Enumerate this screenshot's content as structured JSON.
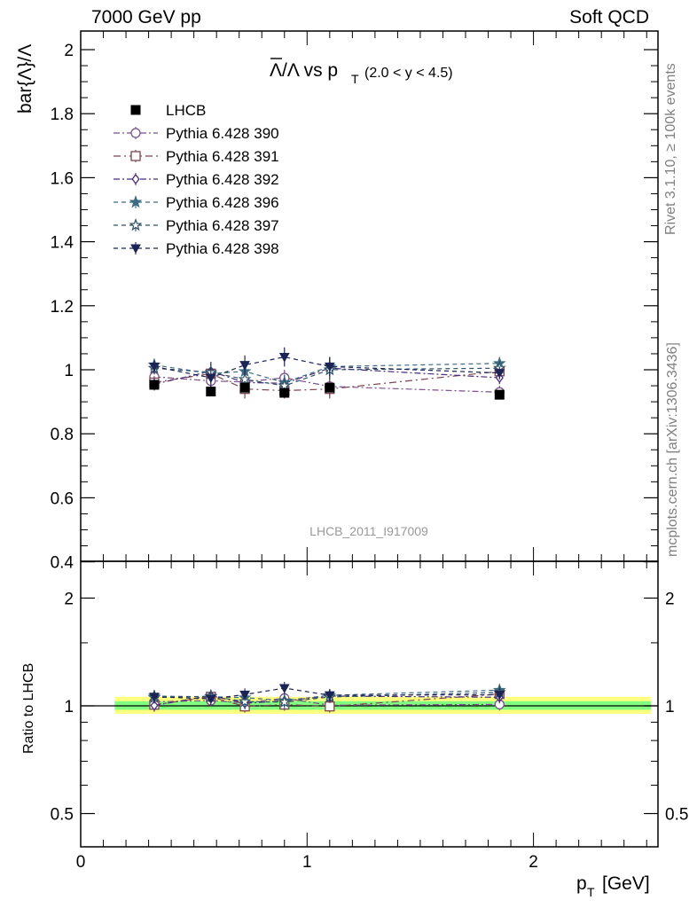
{
  "header": {
    "left": "7000 GeV pp",
    "right": "Soft QCD"
  },
  "side_text": {
    "rivet": "Rivet 3.1.10, ≥ 100k events",
    "mcplots": "mcplots.cern.ch [arXiv:1306.3436]"
  },
  "chart_data": [
    {
      "type": "scatter",
      "panel": "main",
      "title": "Λ̄/Λ vs pT (2.0 < y < 4.5)",
      "title_main": "Λ/Λ vs p",
      "title_sub": "T",
      "title_range": "(2.0 < y < 4.5)",
      "ylabel": "bar{Λ}/Λ",
      "watermark": "LHCB_2011_I917009",
      "xlim": [
        0,
        2.55
      ],
      "ylim": [
        0.4,
        2.05
      ],
      "yticks": [
        "0.4",
        "0.6",
        "0.8",
        "1",
        "1.2",
        "1.4",
        "1.6",
        "1.8",
        "2"
      ],
      "legend_position": "top-left",
      "data": {
        "name": "LHCB",
        "x": [
          0.325,
          0.575,
          0.725,
          0.9,
          1.1,
          1.85
        ],
        "y": [
          0.953,
          0.932,
          0.944,
          0.928,
          0.944,
          0.922
        ],
        "yerr": [
          0.012,
          0.009,
          0.01,
          0.01,
          0.01,
          0.01
        ]
      },
      "series": [
        {
          "name": "Pythia 6.428 390",
          "color": "#7b4f8b",
          "marker": "circle-open",
          "dash": "7,3,2,3",
          "x": [
            0.325,
            0.575,
            0.725,
            0.9,
            1.1,
            1.85
          ],
          "y": [
            0.978,
            0.965,
            0.962,
            0.975,
            0.948,
            0.93
          ],
          "yerr": [
            0.02,
            0.02,
            0.03,
            0.025,
            0.03,
            0.02
          ]
        },
        {
          "name": "Pythia 6.428 391",
          "color": "#7a4550",
          "marker": "square-open",
          "dash": "8,4,2,4",
          "x": [
            0.325,
            0.575,
            0.725,
            0.9,
            1.1,
            1.85
          ],
          "y": [
            0.96,
            0.988,
            0.94,
            0.935,
            0.94,
            0.995
          ],
          "yerr": [
            0.02,
            0.03,
            0.03,
            0.025,
            0.03,
            0.02
          ]
        },
        {
          "name": "Pythia 6.428 392",
          "color": "#4a2b7c",
          "marker": "diamond-open",
          "dash": "7,3,2,3",
          "x": [
            0.325,
            0.575,
            0.725,
            0.9,
            1.1,
            1.85
          ],
          "y": [
            0.955,
            0.995,
            0.96,
            0.958,
            1.005,
            0.975
          ],
          "yerr": [
            0.02,
            0.03,
            0.03,
            0.025,
            0.03,
            0.02
          ]
        },
        {
          "name": "Pythia 6.428 396",
          "color": "#3d6b82",
          "marker": "star-filled",
          "dash": "5,4",
          "x": [
            0.325,
            0.575,
            0.725,
            0.9,
            1.1,
            1.85
          ],
          "y": [
            1.015,
            0.988,
            0.995,
            0.96,
            1.01,
            1.02
          ],
          "yerr": [
            0.02,
            0.03,
            0.03,
            0.025,
            0.03,
            0.02
          ]
        },
        {
          "name": "Pythia 6.428 397",
          "color": "#2f5266",
          "marker": "star-open",
          "dash": "5,4",
          "x": [
            0.325,
            0.575,
            0.725,
            0.9,
            1.1,
            1.85
          ],
          "y": [
            1.005,
            0.992,
            0.97,
            0.95,
            1.0,
            1.005
          ],
          "yerr": [
            0.02,
            0.03,
            0.03,
            0.025,
            0.03,
            0.02
          ]
        },
        {
          "name": "Pythia 6.428 398",
          "color": "#1c2456",
          "marker": "triangle-down-filled",
          "dash": "5,4",
          "x": [
            0.325,
            0.575,
            0.725,
            0.9,
            1.1,
            1.85
          ],
          "y": [
            1.01,
            0.975,
            1.015,
            1.04,
            1.01,
            0.99
          ],
          "yerr": [
            0.02,
            0.03,
            0.03,
            0.03,
            0.03,
            0.02
          ]
        }
      ]
    },
    {
      "type": "scatter",
      "panel": "ratio",
      "ylabel": "Ratio to LHCB",
      "xlabel_main": "p",
      "xlabel_sub": "T",
      "xlabel_unit": "[GeV]",
      "xlim": [
        0,
        2.55
      ],
      "ylim": [
        0.37,
        2.4
      ],
      "log_y": true,
      "yticks": [
        "0.5",
        "1",
        "2"
      ],
      "xticks": [
        "0",
        "1",
        "2"
      ],
      "band_x": [
        0.15,
        2.52
      ],
      "band_yellow": [
        0.95,
        1.06
      ],
      "band_green": [
        0.975,
        1.03
      ],
      "series": [
        {
          "name": "Pythia 6.428 390",
          "color": "#7b4f8b",
          "marker": "circle-open",
          "dash": "7,3,2,3",
          "x": [
            0.325,
            0.575,
            0.725,
            0.9,
            1.1,
            1.85
          ],
          "y": [
            1.026,
            1.035,
            1.019,
            1.05,
            1.004,
            1.009
          ]
        },
        {
          "name": "Pythia 6.428 391",
          "color": "#7a4550",
          "marker": "square-open",
          "dash": "8,4,2,4",
          "x": [
            0.325,
            0.575,
            0.725,
            0.9,
            1.1,
            1.85
          ],
          "y": [
            1.007,
            1.06,
            0.996,
            1.008,
            0.996,
            1.079
          ]
        },
        {
          "name": "Pythia 6.428 392",
          "color": "#4a2b7c",
          "marker": "diamond-open",
          "dash": "7,3,2,3",
          "x": [
            0.325,
            0.575,
            0.725,
            0.9,
            1.1,
            1.85
          ],
          "y": [
            1.002,
            1.068,
            1.017,
            1.032,
            1.065,
            1.057
          ]
        },
        {
          "name": "Pythia 6.428 396",
          "color": "#3d6b82",
          "marker": "star-filled",
          "dash": "5,4",
          "x": [
            0.325,
            0.575,
            0.725,
            0.9,
            1.1,
            1.85
          ],
          "y": [
            1.065,
            1.06,
            1.054,
            1.034,
            1.07,
            1.106
          ]
        },
        {
          "name": "Pythia 6.428 397",
          "color": "#2f5266",
          "marker": "star-open",
          "dash": "5,4",
          "x": [
            0.325,
            0.575,
            0.725,
            0.9,
            1.1,
            1.85
          ],
          "y": [
            1.055,
            1.064,
            1.028,
            1.024,
            1.059,
            1.09
          ]
        },
        {
          "name": "Pythia 6.428 398",
          "color": "#1c2456",
          "marker": "triangle-down-filled",
          "dash": "5,4",
          "x": [
            0.325,
            0.575,
            0.725,
            0.9,
            1.1,
            1.85
          ],
          "y": [
            1.06,
            1.046,
            1.075,
            1.121,
            1.07,
            1.074
          ]
        }
      ]
    }
  ]
}
